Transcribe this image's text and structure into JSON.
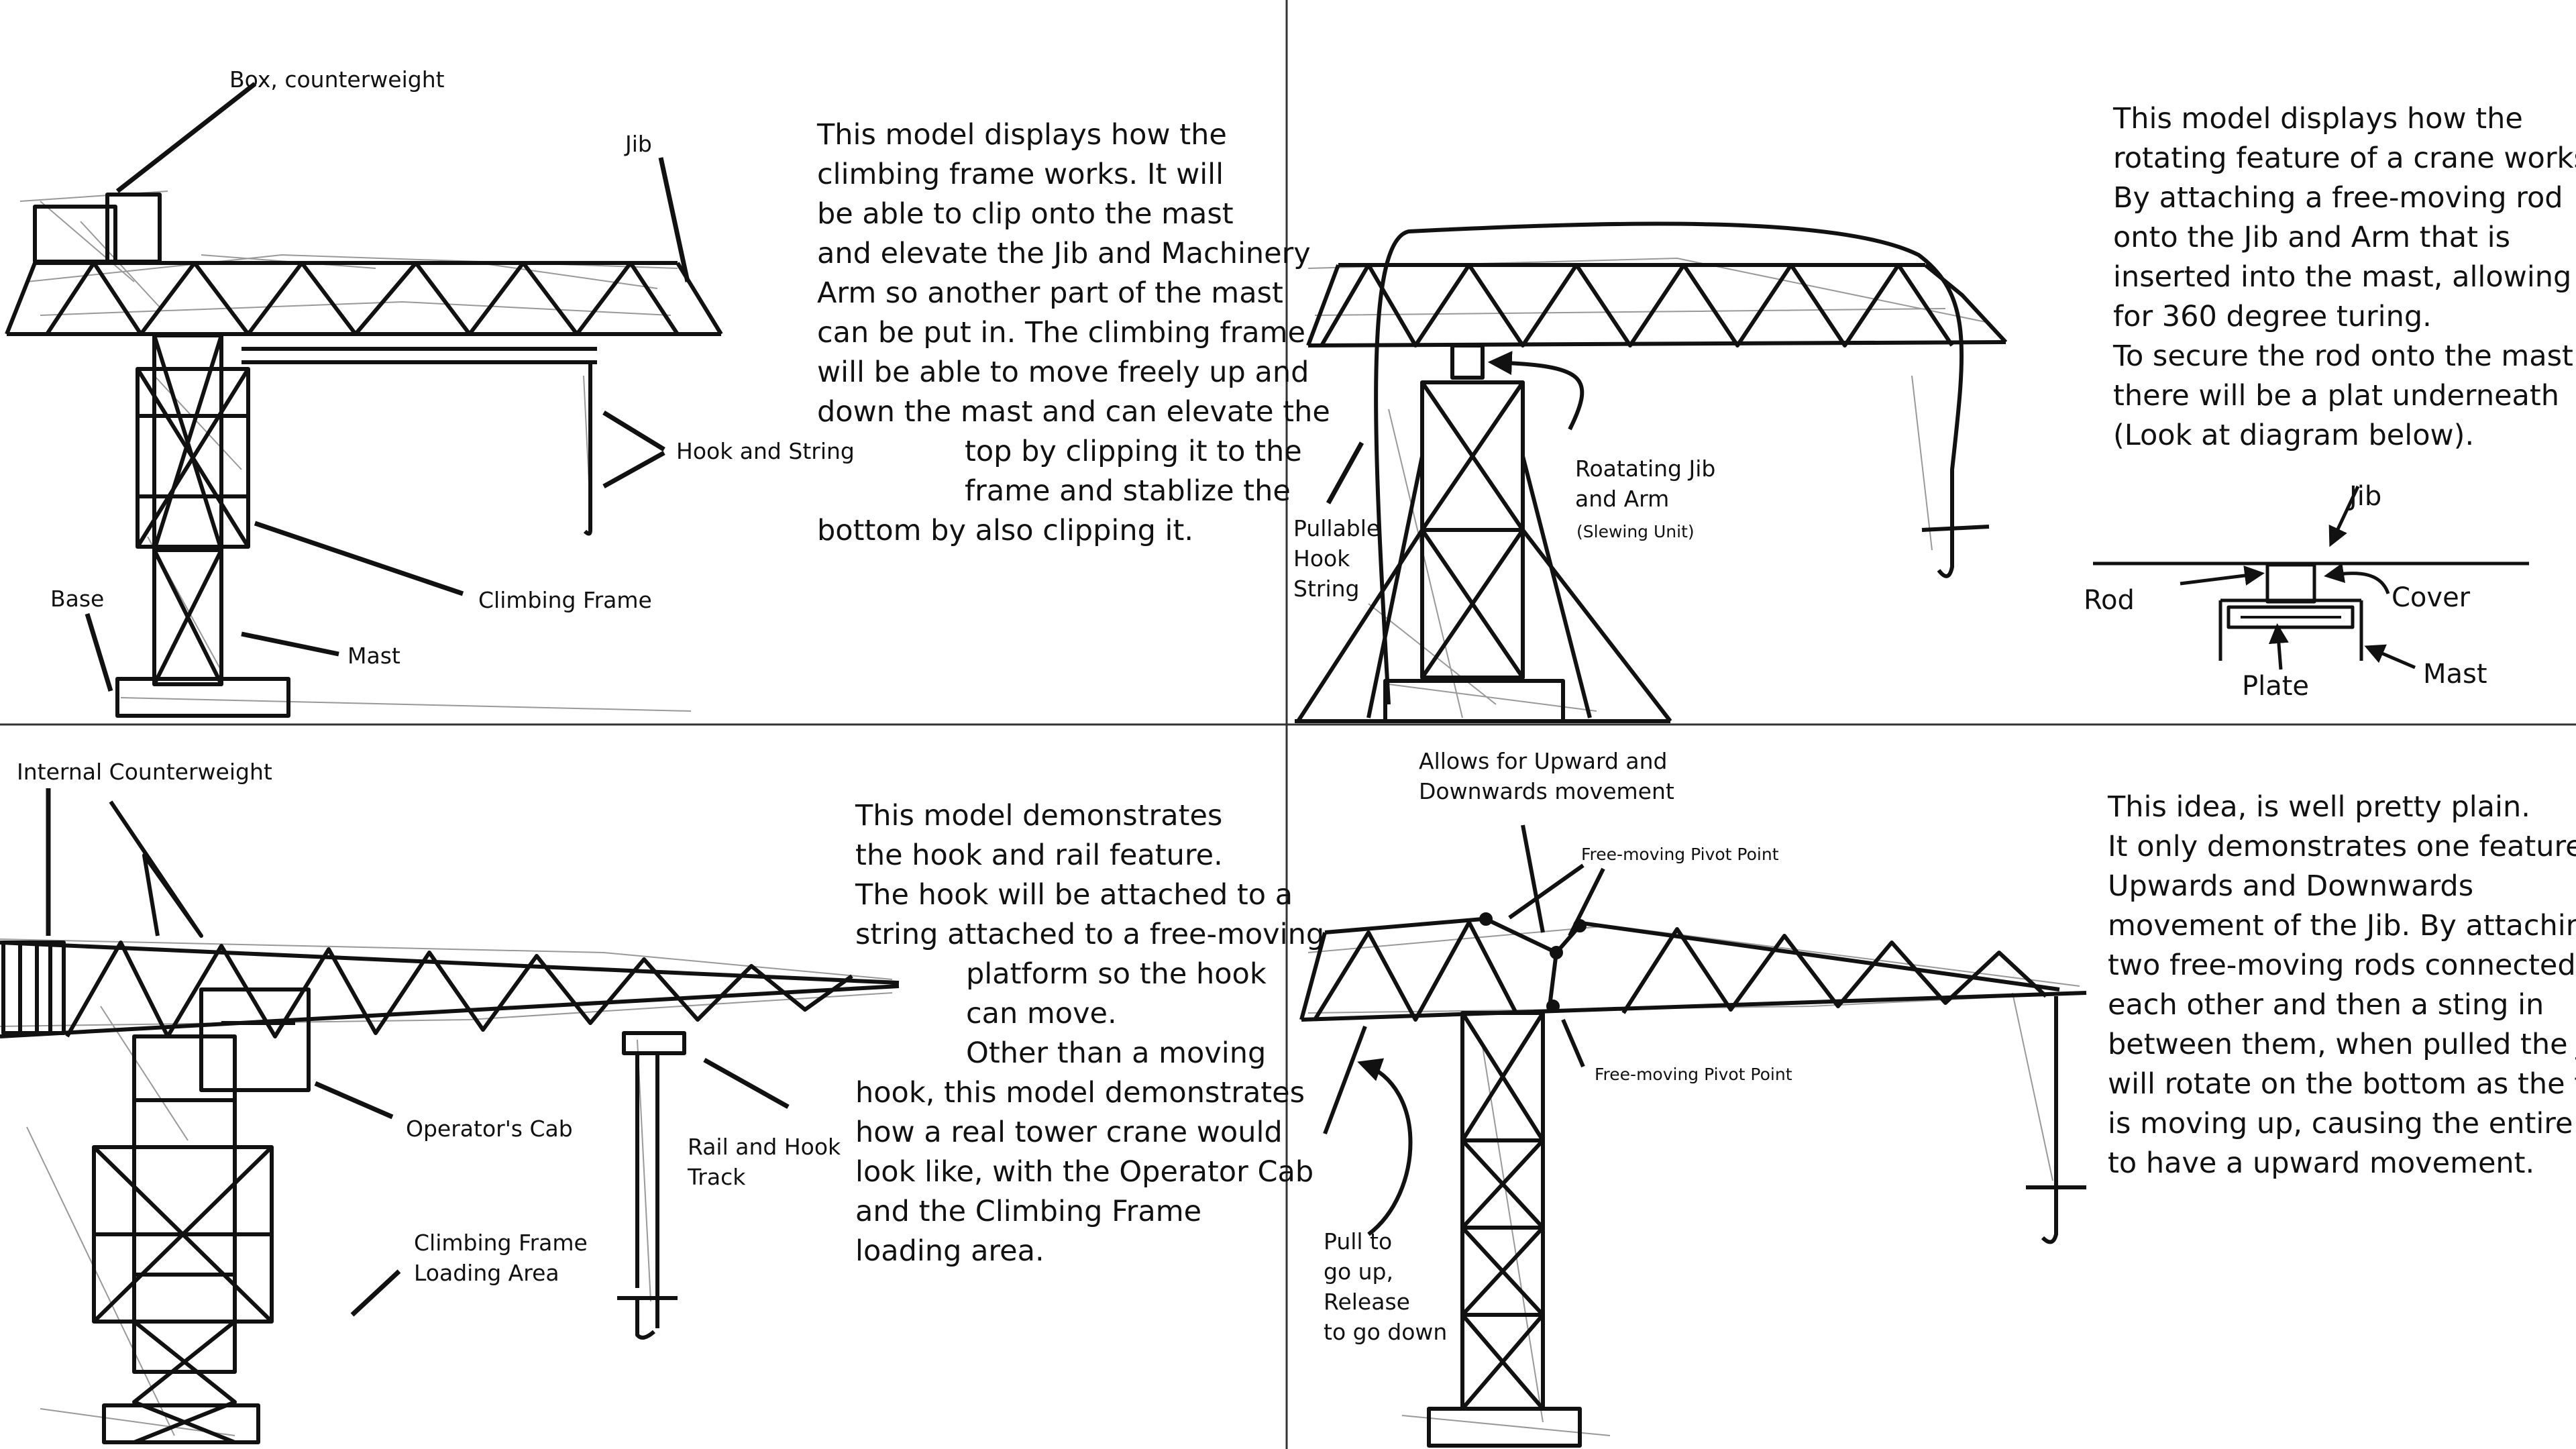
{
  "quadrants": {
    "top_left": {
      "description_lines": [
        "This model displays how the",
        "climbing frame works. It will",
        "be able to clip onto the mast",
        "and elevate the Jib and Machinery",
        "Arm so another part of the mast",
        "can be put in. The climbing frame",
        "will be able to move freely up and",
        "down the mast and can elevate the",
        "top by clipping it to the",
        "frame and stablize the",
        "bottom by also clipping it."
      ],
      "labels": {
        "box_counterweight": "Box, counterweight",
        "jib": "Jib",
        "hook_and_string": "Hook and String",
        "base": "Base",
        "climbing_frame": "Climbing Frame",
        "mast": "Mast"
      }
    },
    "top_right": {
      "description_lines": [
        "This model displays how the",
        "rotating feature of a crane works.",
        "By attaching a free-moving rod",
        "onto the Jib and Arm that is",
        "inserted into the mast, allowing",
        "for 360 degree turing.",
        "To secure the rod onto the mast",
        "there will be a plat underneath",
        "(Look at diagram below)."
      ],
      "labels": {
        "pullable_hook_string": [
          "Pullable",
          "Hook",
          "String"
        ],
        "rotating_jib_and_arm": [
          "Roatating Jib",
          "and Arm"
        ],
        "slewing_unit": "(Slewing Unit)",
        "detail_jib": "Jib",
        "detail_rod": "Rod",
        "detail_cover": "Cover",
        "detail_plate": "Plate",
        "detail_mast": "Mast"
      }
    },
    "bottom_left": {
      "description_lines": [
        "This model demonstrates",
        "the hook and rail feature.",
        "The hook will be attached to a",
        "string attached to a free-moving",
        "platform so the hook",
        "can move.",
        "Other than a moving",
        "hook, this model demonstrates",
        "how a real tower crane would",
        "look like, with the Operator Cab",
        "and the Climbing Frame",
        "loading area."
      ],
      "labels": {
        "internal_counterweight": "Internal Counterweight",
        "operators_cab": "Operator's Cab",
        "rail_and_hook_track": [
          "Rail and Hook",
          "Track"
        ],
        "climbing_frame_loading_area": [
          "Climbing Frame",
          "Loading Area"
        ]
      }
    },
    "bottom_right": {
      "description_lines": [
        "This idea, is well pretty plain.",
        "It only demonstrates one feature,",
        "Upwards and Downwards",
        "movement of the Jib. By attaching",
        "two free-moving rods connected to",
        "each other and then a sting in",
        "between them, when pulled the Jib",
        "will rotate on the bottom as the top",
        "is moving up, causing the entire Jib",
        "to have a upward movement."
      ],
      "labels": {
        "allows_movement": [
          "Allows for Upward and",
          "Downwards movement"
        ],
        "pivot_point_top": "Free-moving Pivot Point",
        "pivot_point_bottom": "Free-moving Pivot Point",
        "pull_release": [
          "Pull to",
          "go up,",
          "Release",
          "to go down"
        ]
      }
    }
  }
}
